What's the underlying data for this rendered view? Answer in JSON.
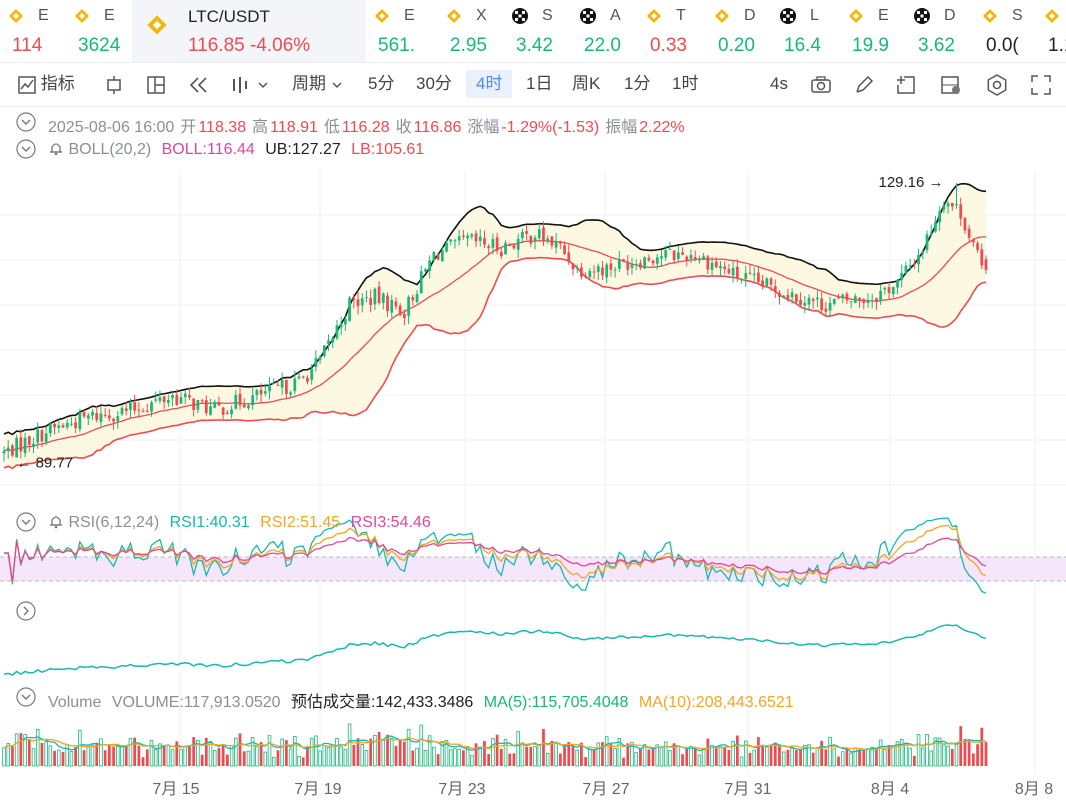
{
  "tickers": [
    {
      "sym": "E",
      "price": "114",
      "dir": "dn",
      "icon": "bnb-icon"
    },
    {
      "sym": "E",
      "price": "3624",
      "dir": "up",
      "icon": "bnb-icon"
    },
    {
      "sym": "LTC/USDT",
      "price": "116.85",
      "change": "-4.06%",
      "dir": "dn",
      "icon": "bnb-icon",
      "main": true
    },
    {
      "sym": "E",
      "price": "561.",
      "dir": "up",
      "icon": "bnb-icon"
    },
    {
      "sym": "X",
      "price": "2.95",
      "dir": "up",
      "icon": "bnb-icon"
    },
    {
      "sym": "S",
      "price": "3.42",
      "dir": "up",
      "icon": "okx-icon"
    },
    {
      "sym": "A",
      "price": "22.0",
      "dir": "up",
      "icon": "okx-icon"
    },
    {
      "sym": "T",
      "price": "0.33",
      "dir": "dn",
      "icon": "bnb-icon"
    },
    {
      "sym": "D",
      "price": "0.20",
      "dir": "up",
      "icon": "bnb-icon"
    },
    {
      "sym": "L",
      "price": "16.4",
      "dir": "up",
      "icon": "okx-icon"
    },
    {
      "sym": "E",
      "price": "19.9",
      "dir": "up",
      "icon": "bnb-icon"
    },
    {
      "sym": "D",
      "price": "3.62",
      "dir": "up",
      "icon": "okx-icon"
    },
    {
      "sym": "S",
      "price": "0.0(",
      "dir": "neutral",
      "icon": "bnb-icon"
    },
    {
      "sym": "",
      "price": "1.1",
      "dir": "neutral",
      "icon": "bnb-icon"
    }
  ],
  "toolbar": {
    "indicators": "指标",
    "period": "周期",
    "intervals": [
      "5分",
      "30分",
      "4时",
      "1日",
      "周K",
      "1分",
      "1时"
    ],
    "active_interval": "4时",
    "refresh": "4s"
  },
  "ohlc": {
    "date": "2025-08-06 16:00",
    "open_label": "开",
    "open": "118.38",
    "high_label": "高",
    "high": "118.91",
    "low_label": "低",
    "low": "116.28",
    "close_label": "收",
    "close": "116.86",
    "chg_label": "涨幅",
    "chg": "-1.29%(-1.53)",
    "amp_label": "振幅",
    "amp": "2.22%"
  },
  "boll": {
    "name": "BOLL(20,2)",
    "mid": "BOLL:116.44",
    "ub": "UB:127.27",
    "lb": "LB:105.61"
  },
  "rsi": {
    "name": "RSI(6,12,24)",
    "r1": "RSI1:40.31",
    "r2": "RSI2:51.45",
    "r3": "RSI3:54.46"
  },
  "volume": {
    "name": "Volume",
    "vol": "VOLUME:117,913.0520",
    "est": "预估成交量:142,433.3486",
    "ma5": "MA(5):115,705.4048",
    "ma10": "MA(10):208,443.6521"
  },
  "colors": {
    "up": "#16b979",
    "down": "#f04a4f",
    "boll_mid": "#f04a4f",
    "boll_upper": "#111111",
    "boll_lower": "#f04a4f",
    "band_fill": "#fdf8e2",
    "rsi1": "#16b9b0",
    "rsi2": "#f5a623",
    "rsi3": "#e0479b"
  },
  "chart_data": {
    "type": "candlestick",
    "interval": "4h",
    "x_ticks": [
      "7月 15",
      "7月 19",
      "7月 23",
      "7月 27",
      "7月 31",
      "8月 4",
      "8月 8"
    ],
    "price_labels": {
      "high": "129.16",
      "low": "89.77"
    },
    "ylim": [
      85,
      131
    ],
    "anchors": [
      [
        0,
        91
      ],
      [
        10,
        94
      ],
      [
        20,
        96
      ],
      [
        30,
        97
      ],
      [
        40,
        99
      ],
      [
        50,
        97
      ],
      [
        60,
        99
      ],
      [
        70,
        101
      ],
      [
        75,
        104
      ],
      [
        82,
        112
      ],
      [
        88,
        113
      ],
      [
        95,
        111
      ],
      [
        102,
        119
      ],
      [
        110,
        121
      ],
      [
        118,
        120
      ],
      [
        126,
        122
      ],
      [
        132,
        120
      ],
      [
        136,
        117
      ],
      [
        142,
        117
      ],
      [
        148,
        118
      ],
      [
        156,
        119
      ],
      [
        164,
        119
      ],
      [
        174,
        116
      ],
      [
        184,
        114
      ],
      [
        194,
        112
      ],
      [
        206,
        113
      ],
      [
        212,
        115
      ],
      [
        218,
        120
      ],
      [
        223,
        127
      ],
      [
        227,
        125
      ],
      [
        232,
        117
      ]
    ],
    "boll": {
      "upper_start": 95,
      "upper_peak": 127,
      "lower_min": 88
    }
  }
}
